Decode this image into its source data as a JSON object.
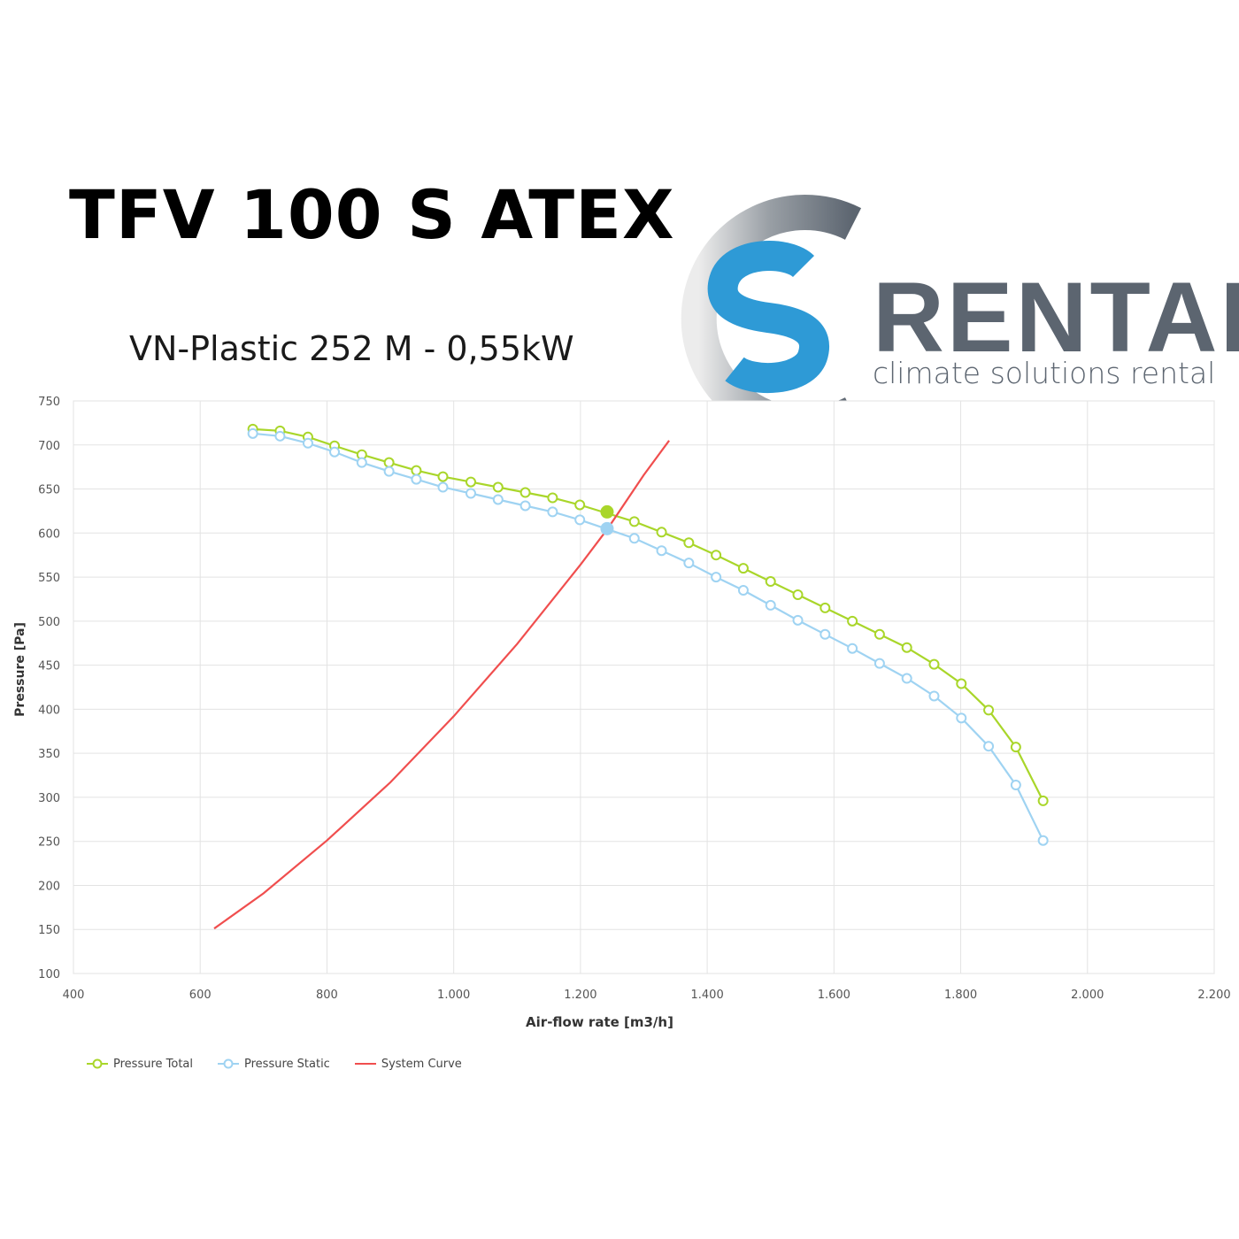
{
  "header": {
    "title": "TFV 100 S ATEX",
    "subtitle": "VN-Plastic 252 M - 0,55kW"
  },
  "logo": {
    "word": "RENTAL",
    "tagline": "climate solutions rental",
    "colors": {
      "ring": "#5c6570",
      "s": "#2e9ad6",
      "text": "#5c6570"
    }
  },
  "chart_data": {
    "type": "line",
    "xlabel": "Air-flow rate [m3/h]",
    "ylabel": "Pressure [Pa]",
    "xlim": [
      400,
      2200
    ],
    "ylim": [
      100,
      750
    ],
    "x_ticks": [
      400,
      600,
      800,
      1000,
      1200,
      1400,
      1600,
      1800,
      2000,
      2200
    ],
    "x_tick_labels": [
      "400",
      "600",
      "800",
      "1.000",
      "1.200",
      "1.400",
      "1.600",
      "1.800",
      "2.000",
      "2.200"
    ],
    "y_ticks": [
      100,
      150,
      200,
      250,
      300,
      350,
      400,
      450,
      500,
      550,
      600,
      650,
      700,
      750
    ],
    "y_tick_labels": [
      "100",
      "150",
      "200",
      "250",
      "300",
      "350",
      "400",
      "450",
      "500",
      "550",
      "600",
      "650",
      "700",
      "750"
    ],
    "grid": true,
    "legend_position": "bottom-left",
    "series": [
      {
        "name": "Pressure Total",
        "color": "#a9d62a",
        "marker": "open-circle",
        "x": [
          683,
          726,
          770,
          812,
          855,
          898,
          941,
          983,
          1027,
          1070,
          1113,
          1156,
          1199,
          1285,
          1328,
          1371,
          1414,
          1457,
          1500,
          1543,
          1586,
          1629,
          1672,
          1715,
          1758,
          1801,
          1844,
          1887,
          1930
        ],
        "y": [
          718,
          716,
          709,
          699,
          689,
          680,
          671,
          664,
          658,
          652,
          646,
          640,
          632,
          613,
          601,
          589,
          575,
          560,
          545,
          530,
          515,
          500,
          485,
          470,
          451,
          429,
          399,
          357,
          296
        ]
      },
      {
        "name": "Pressure Static",
        "color": "#9fd3f2",
        "marker": "open-circle",
        "x": [
          683,
          726,
          770,
          812,
          855,
          898,
          941,
          983,
          1027,
          1070,
          1113,
          1156,
          1199,
          1285,
          1328,
          1371,
          1414,
          1457,
          1500,
          1543,
          1586,
          1629,
          1672,
          1715,
          1758,
          1801,
          1844,
          1887,
          1930
        ],
        "y": [
          713,
          710,
          702,
          692,
          680,
          670,
          661,
          652,
          645,
          638,
          631,
          624,
          615,
          594,
          580,
          566,
          550,
          535,
          518,
          501,
          485,
          469,
          452,
          435,
          415,
          390,
          358,
          314,
          251
        ]
      },
      {
        "name": "System Curve",
        "color": "#f04e4e",
        "marker": "none",
        "x": [
          622,
          700,
          800,
          900,
          1000,
          1100,
          1200,
          1243,
          1300,
          1340
        ],
        "y": [
          151,
          191,
          251,
          317,
          392,
          474,
          564,
          605,
          666,
          705
        ]
      }
    ],
    "operating_points": [
      {
        "series": "Pressure Total",
        "x": 1242,
        "y": 624,
        "color": "#a9d62a"
      },
      {
        "series": "Pressure Static",
        "x": 1242,
        "y": 605,
        "color": "#9fd3f2"
      }
    ]
  }
}
